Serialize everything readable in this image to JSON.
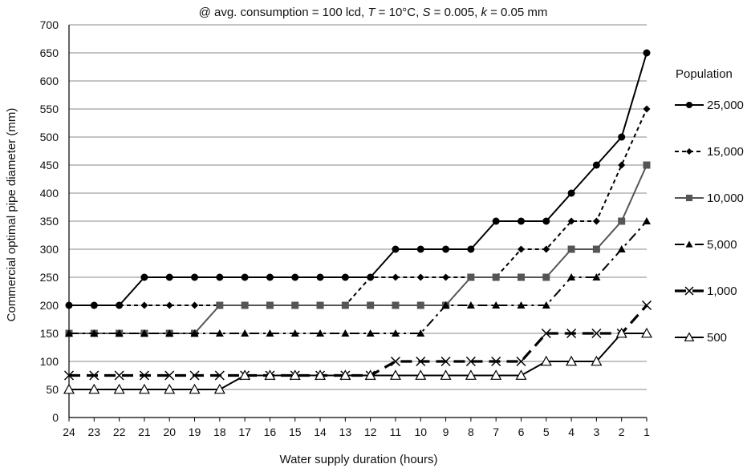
{
  "chart_data": {
    "type": "line",
    "title_parts": [
      {
        "text": "@ avg. consumption = 100 lcd, ",
        "italic": false
      },
      {
        "text": "T",
        "italic": true
      },
      {
        "text": " = 10°C, ",
        "italic": false
      },
      {
        "text": "S",
        "italic": true
      },
      {
        "text": " = 0.005, ",
        "italic": false
      },
      {
        "text": "k",
        "italic": true
      },
      {
        "text": " = 0.05 mm",
        "italic": false
      }
    ],
    "xlabel": "Water supply duration (hours)",
    "ylabel": "Commercial optimal pipe diameter (mm)",
    "x": [
      24,
      23,
      22,
      21,
      20,
      19,
      18,
      17,
      16,
      15,
      14,
      13,
      12,
      11,
      10,
      9,
      8,
      7,
      6,
      5,
      4,
      3,
      2,
      1
    ],
    "x_reversed": true,
    "ylim": [
      0,
      700
    ],
    "yticks": [
      0,
      50,
      100,
      150,
      200,
      250,
      300,
      350,
      400,
      450,
      500,
      550,
      600,
      650,
      700
    ],
    "grid": "horizontal",
    "legend_title": "Population",
    "legend_position": "right",
    "series": [
      {
        "name": "25,000",
        "marker": "circle",
        "color": "#000000",
        "dash": "solid",
        "values": [
          200,
          200,
          200,
          250,
          250,
          250,
          250,
          250,
          250,
          250,
          250,
          250,
          250,
          300,
          300,
          300,
          300,
          350,
          350,
          350,
          400,
          450,
          500,
          650
        ]
      },
      {
        "name": "15,000",
        "marker": "diamond",
        "color": "#000000",
        "dash": "dashed",
        "values": [
          200,
          200,
          200,
          200,
          200,
          200,
          200,
          200,
          200,
          200,
          200,
          200,
          250,
          250,
          250,
          250,
          250,
          250,
          300,
          300,
          350,
          350,
          450,
          550
        ]
      },
      {
        "name": "10,000",
        "marker": "square",
        "color": "#555555",
        "dash": "solid",
        "values": [
          150,
          150,
          150,
          150,
          150,
          150,
          200,
          200,
          200,
          200,
          200,
          200,
          200,
          200,
          200,
          200,
          250,
          250,
          250,
          250,
          300,
          300,
          350,
          450
        ]
      },
      {
        "name": "5,000",
        "marker": "triangle",
        "color": "#000000",
        "dash": "dashdot",
        "values": [
          150,
          150,
          150,
          150,
          150,
          150,
          150,
          150,
          150,
          150,
          150,
          150,
          150,
          150,
          150,
          200,
          200,
          200,
          200,
          200,
          250,
          250,
          300,
          350
        ]
      },
      {
        "name": "1,000",
        "marker": "x",
        "color": "#000000",
        "dash": "longdash",
        "values": [
          75,
          75,
          75,
          75,
          75,
          75,
          75,
          75,
          75,
          75,
          75,
          75,
          75,
          100,
          100,
          100,
          100,
          100,
          100,
          150,
          150,
          150,
          150,
          200
        ]
      },
      {
        "name": "500",
        "marker": "open-triangle",
        "color": "#000000",
        "dash": "solid",
        "values": [
          50,
          50,
          50,
          50,
          50,
          50,
          50,
          75,
          75,
          75,
          75,
          75,
          75,
          75,
          75,
          75,
          75,
          75,
          75,
          100,
          100,
          100,
          150,
          150
        ]
      }
    ]
  }
}
